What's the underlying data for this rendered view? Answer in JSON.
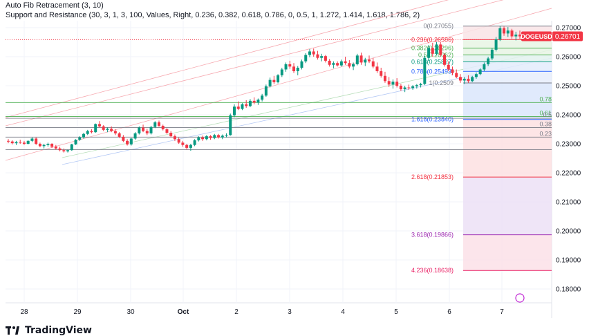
{
  "indicators": [
    "Auto Fib Retracement (3, 10)",
    "Support and Resistance (30, 3, 1, 3, 100, Values, Right, 0.236, 0.382, 0.618, 0.786, 0, 0.5, 1, 1.272, 1.414, 1.618, 1.786, 2)"
  ],
  "symbol": {
    "label": "DOGEUSD",
    "price": "0.26701",
    "color": "#f23645"
  },
  "brand": "TradingView",
  "chart_data": {
    "type": "candlestick",
    "x_ticks": [
      "28",
      "29",
      "30",
      "Oct",
      "2",
      "3",
      "4",
      "5",
      "6",
      "7"
    ],
    "y_ticks": [
      "0.27000",
      "0.26000",
      "0.25000",
      "0.24000",
      "0.23000",
      "0.22000",
      "0.21000",
      "0.20000",
      "0.19000",
      "0.18000"
    ],
    "ylim": [
      0.177,
      0.2712
    ],
    "fib_levels": [
      {
        "level": "0",
        "value": 0.27055,
        "label": "0(0.27055)",
        "color": "#787b86"
      },
      {
        "level": "0.236",
        "value": 0.26586,
        "label": "0.236(0.26586)",
        "color": "#f23645"
      },
      {
        "level": "0.382",
        "value": 0.26296,
        "label": "0.382(0.26296)",
        "color": "#4caf50"
      },
      {
        "level": "0.5",
        "value": 0.26062,
        "label": "0.5(0.26062)",
        "color": "#4caf50"
      },
      {
        "level": "0.618",
        "value": 0.25827,
        "label": "0.618(0.25827)",
        "color": "#089981"
      },
      {
        "level": "0.786",
        "value": 0.25493,
        "label": "0.786(0.25493)",
        "color": "#2962ff"
      },
      {
        "level": "1",
        "value": 0.25096,
        "label": "1(0.2509",
        "color": "#787b86"
      },
      {
        "level": "1.618",
        "value": 0.2384,
        "label": "1.618(0.23840)",
        "color": "#2962ff"
      },
      {
        "level": "2.618",
        "value": 0.21853,
        "label": "2.618(0.21853)",
        "color": "#f23645"
      },
      {
        "level": "3.618",
        "value": 0.19866,
        "label": "3.618(0.19866)",
        "color": "#9c27b0"
      },
      {
        "level": "4.236",
        "value": 0.18638,
        "label": "4.236(0.18638)",
        "color": "#e91e63"
      }
    ],
    "sr_lines": [
      {
        "value": 0.2442,
        "label": "0.78",
        "color": "#4caf50"
      },
      {
        "value": 0.2394,
        "label": "0.61",
        "color": "#4caf50"
      },
      {
        "value": 0.2388,
        "label": "0.5",
        "color": "#787b86"
      },
      {
        "value": 0.2356,
        "label": "0.38",
        "color": "#787b86"
      },
      {
        "value": 0.2323,
        "label": "0.23",
        "color": "#787b86"
      },
      {
        "value": 0.228,
        "label": "",
        "color": "#787b86"
      }
    ],
    "candles": [
      [
        0.231,
        0.2316,
        0.2302,
        0.2308
      ],
      [
        0.2308,
        0.2312,
        0.2298,
        0.2302
      ],
      [
        0.2302,
        0.231,
        0.2296,
        0.2306
      ],
      [
        0.2306,
        0.2314,
        0.23,
        0.2304
      ],
      [
        0.2304,
        0.231,
        0.2296,
        0.23
      ],
      [
        0.23,
        0.2312,
        0.2298,
        0.231
      ],
      [
        0.231,
        0.2322,
        0.2306,
        0.2318
      ],
      [
        0.2318,
        0.2322,
        0.2296,
        0.23
      ],
      [
        0.23,
        0.2304,
        0.2288,
        0.2292
      ],
      [
        0.2292,
        0.23,
        0.2284,
        0.2296
      ],
      [
        0.2296,
        0.2304,
        0.229,
        0.23
      ],
      [
        0.23,
        0.2302,
        0.2286,
        0.229
      ],
      [
        0.229,
        0.2296,
        0.228,
        0.2284
      ],
      [
        0.2284,
        0.229,
        0.2274,
        0.2278
      ],
      [
        0.2278,
        0.2284,
        0.227,
        0.2274
      ],
      [
        0.2274,
        0.228,
        0.227,
        0.2278
      ],
      [
        0.2278,
        0.23,
        0.2276,
        0.2298
      ],
      [
        0.2298,
        0.2316,
        0.2296,
        0.2314
      ],
      [
        0.2314,
        0.2326,
        0.231,
        0.2322
      ],
      [
        0.2322,
        0.2338,
        0.2318,
        0.2334
      ],
      [
        0.2334,
        0.2348,
        0.233,
        0.2344
      ],
      [
        0.2344,
        0.235,
        0.2336,
        0.234
      ],
      [
        0.234,
        0.237,
        0.2338,
        0.2368
      ],
      [
        0.2368,
        0.2378,
        0.2356,
        0.236
      ],
      [
        0.236,
        0.2364,
        0.2344,
        0.2348
      ],
      [
        0.2348,
        0.2356,
        0.234,
        0.2352
      ],
      [
        0.2352,
        0.236,
        0.234,
        0.2344
      ],
      [
        0.2344,
        0.235,
        0.233,
        0.2336
      ],
      [
        0.2336,
        0.234,
        0.232,
        0.2324
      ],
      [
        0.2324,
        0.233,
        0.2306,
        0.231
      ],
      [
        0.231,
        0.2316,
        0.2294,
        0.2298
      ],
      [
        0.2298,
        0.232,
        0.2294,
        0.2318
      ],
      [
        0.2318,
        0.234,
        0.2314,
        0.2336
      ],
      [
        0.2336,
        0.236,
        0.2332,
        0.2356
      ],
      [
        0.2356,
        0.2366,
        0.234,
        0.2344
      ],
      [
        0.2344,
        0.2352,
        0.233,
        0.2336
      ],
      [
        0.2336,
        0.2362,
        0.2332,
        0.2358
      ],
      [
        0.2358,
        0.2378,
        0.2354,
        0.2374
      ],
      [
        0.2374,
        0.238,
        0.2358,
        0.2362
      ],
      [
        0.2362,
        0.2366,
        0.2346,
        0.235
      ],
      [
        0.235,
        0.2354,
        0.2334,
        0.2338
      ],
      [
        0.2338,
        0.2344,
        0.2322,
        0.2326
      ],
      [
        0.2326,
        0.2332,
        0.231,
        0.2316
      ],
      [
        0.2316,
        0.2322,
        0.23,
        0.2304
      ],
      [
        0.2304,
        0.231,
        0.229,
        0.2296
      ],
      [
        0.2296,
        0.23,
        0.228,
        0.2286
      ],
      [
        0.2286,
        0.23,
        0.2276,
        0.2296
      ],
      [
        0.2296,
        0.2316,
        0.2292,
        0.2312
      ],
      [
        0.2312,
        0.2326,
        0.2308,
        0.2322
      ],
      [
        0.2322,
        0.2328,
        0.231,
        0.2316
      ],
      [
        0.2316,
        0.233,
        0.2312,
        0.2326
      ],
      [
        0.2326,
        0.233,
        0.2314,
        0.232
      ],
      [
        0.232,
        0.2334,
        0.2316,
        0.233
      ],
      [
        0.233,
        0.2334,
        0.2318,
        0.2322
      ],
      [
        0.2322,
        0.2332,
        0.2316,
        0.2328
      ],
      [
        0.2328,
        0.2336,
        0.2322,
        0.233
      ],
      [
        0.233,
        0.2404,
        0.2328,
        0.2398
      ],
      [
        0.2398,
        0.2436,
        0.2392,
        0.2428
      ],
      [
        0.2428,
        0.2446,
        0.2416,
        0.242
      ],
      [
        0.242,
        0.244,
        0.2416,
        0.2436
      ],
      [
        0.2436,
        0.245,
        0.2424,
        0.243
      ],
      [
        0.243,
        0.2454,
        0.2426,
        0.2448
      ],
      [
        0.2448,
        0.246,
        0.2436,
        0.2442
      ],
      [
        0.2442,
        0.2456,
        0.2434,
        0.2452
      ],
      [
        0.2452,
        0.2472,
        0.2446,
        0.2466
      ],
      [
        0.2466,
        0.2504,
        0.2462,
        0.2498
      ],
      [
        0.2498,
        0.2528,
        0.2494,
        0.252
      ],
      [
        0.252,
        0.2534,
        0.2506,
        0.2512
      ],
      [
        0.2512,
        0.254,
        0.2508,
        0.2536
      ],
      [
        0.2536,
        0.2562,
        0.253,
        0.2556
      ],
      [
        0.2556,
        0.258,
        0.2548,
        0.2574
      ],
      [
        0.2574,
        0.2586,
        0.2558,
        0.2566
      ],
      [
        0.2566,
        0.2578,
        0.2544,
        0.255
      ],
      [
        0.255,
        0.2568,
        0.2536,
        0.2562
      ],
      [
        0.2562,
        0.259,
        0.2556,
        0.2584
      ],
      [
        0.2584,
        0.2612,
        0.2578,
        0.2606
      ],
      [
        0.2606,
        0.2626,
        0.2598,
        0.2618
      ],
      [
        0.2618,
        0.2628,
        0.26,
        0.2608
      ],
      [
        0.2608,
        0.262,
        0.259,
        0.2596
      ],
      [
        0.2596,
        0.261,
        0.2584,
        0.2602
      ],
      [
        0.2602,
        0.2606,
        0.258,
        0.2586
      ],
      [
        0.2586,
        0.2592,
        0.2566,
        0.2572
      ],
      [
        0.2572,
        0.2584,
        0.256,
        0.2578
      ],
      [
        0.2578,
        0.2584,
        0.2566,
        0.257
      ],
      [
        0.257,
        0.259,
        0.2566,
        0.2584
      ],
      [
        0.2584,
        0.26,
        0.2572,
        0.2578
      ],
      [
        0.2578,
        0.2588,
        0.256,
        0.2566
      ],
      [
        0.2566,
        0.258,
        0.2554,
        0.2574
      ],
      [
        0.2574,
        0.261,
        0.257,
        0.2604
      ],
      [
        0.2604,
        0.2614,
        0.2572,
        0.258
      ],
      [
        0.258,
        0.2596,
        0.2568,
        0.259
      ],
      [
        0.259,
        0.2604,
        0.2578,
        0.2584
      ],
      [
        0.2584,
        0.2596,
        0.256,
        0.2566
      ],
      [
        0.2566,
        0.258,
        0.2544,
        0.255
      ],
      [
        0.255,
        0.2562,
        0.2528,
        0.2534
      ],
      [
        0.2534,
        0.2548,
        0.251,
        0.2516
      ],
      [
        0.2516,
        0.253,
        0.2496,
        0.2504
      ],
      [
        0.2504,
        0.2522,
        0.249,
        0.2514
      ],
      [
        0.2514,
        0.2526,
        0.2494,
        0.25
      ],
      [
        0.25,
        0.2506,
        0.2482,
        0.2488
      ],
      [
        0.2488,
        0.25,
        0.2478,
        0.2494
      ],
      [
        0.2494,
        0.2504,
        0.2486,
        0.2492
      ],
      [
        0.2492,
        0.2502,
        0.2486,
        0.2498
      ],
      [
        0.2498,
        0.2506,
        0.249,
        0.2502
      ],
      [
        0.2502,
        0.251,
        0.2494,
        0.2506
      ],
      [
        0.2506,
        0.2604,
        0.2502,
        0.2596
      ],
      [
        0.2596,
        0.264,
        0.2586,
        0.263
      ],
      [
        0.263,
        0.2648,
        0.26,
        0.261
      ],
      [
        0.261,
        0.265,
        0.2604,
        0.2642
      ],
      [
        0.2642,
        0.265,
        0.26,
        0.2606
      ],
      [
        0.2606,
        0.2612,
        0.2566,
        0.2572
      ],
      [
        0.2572,
        0.2584,
        0.255,
        0.2556
      ],
      [
        0.2556,
        0.2566,
        0.2536,
        0.2544
      ],
      [
        0.2544,
        0.2556,
        0.2526,
        0.253
      ],
      [
        0.253,
        0.254,
        0.251,
        0.2518
      ],
      [
        0.2518,
        0.253,
        0.2506,
        0.2524
      ],
      [
        0.2524,
        0.2536,
        0.251,
        0.2516
      ],
      [
        0.2516,
        0.2534,
        0.2512,
        0.253
      ],
      [
        0.253,
        0.2546,
        0.2524,
        0.254
      ],
      [
        0.254,
        0.256,
        0.2536,
        0.2556
      ],
      [
        0.2556,
        0.258,
        0.255,
        0.2574
      ],
      [
        0.2574,
        0.26,
        0.2568,
        0.2594
      ],
      [
        0.2594,
        0.263,
        0.2588,
        0.2624
      ],
      [
        0.2624,
        0.2668,
        0.2618,
        0.266
      ],
      [
        0.266,
        0.2706,
        0.2654,
        0.2698
      ],
      [
        0.2698,
        0.2704,
        0.2672,
        0.268
      ],
      [
        0.268,
        0.2702,
        0.2668,
        0.269
      ],
      [
        0.269,
        0.2696,
        0.2662,
        0.267
      ],
      [
        0.267,
        0.2686,
        0.2656,
        0.2676
      ],
      [
        0.2676,
        0.269,
        0.2662,
        0.267
      ]
    ]
  }
}
